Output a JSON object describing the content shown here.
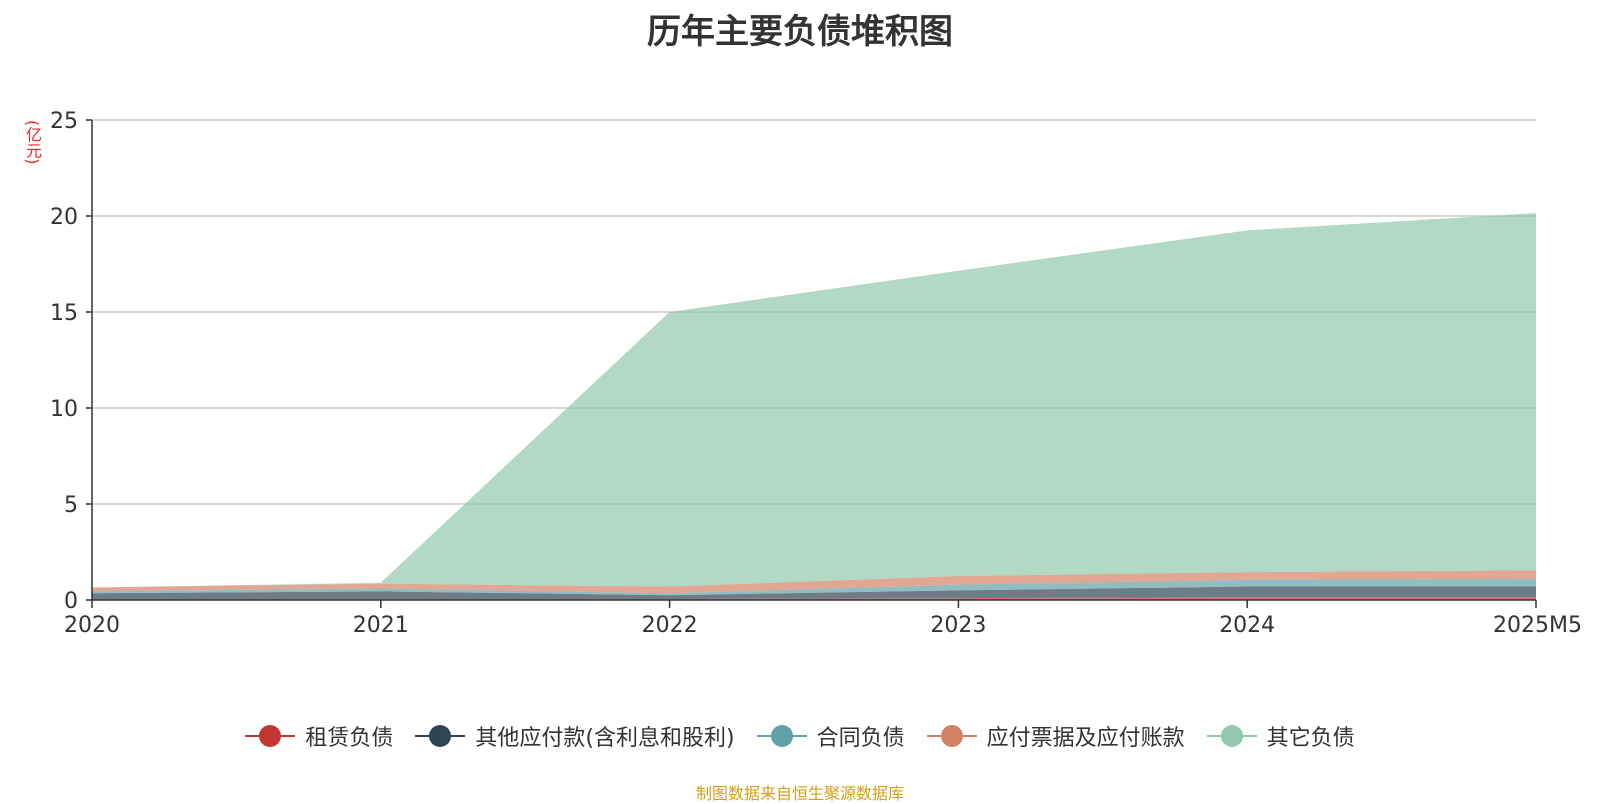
{
  "chart_data": {
    "type": "area",
    "stacked": true,
    "title": "历年主要负债堆积图",
    "unit_label": "(亿元)",
    "x": [
      "2020",
      "2021",
      "2022",
      "2023",
      "2024",
      "2025M5"
    ],
    "ylim": [
      0,
      25
    ],
    "yticks": [
      "0",
      "5",
      "10",
      "15",
      "20",
      "25"
    ],
    "grid": true,
    "legend_position": "bottom",
    "series": [
      {
        "name": "租赁负债",
        "color": "#c23531",
        "values": [
          0.05,
          0.05,
          0.05,
          0.1,
          0.15,
          0.15
        ]
      },
      {
        "name": "其他应付款(含利息和股利)",
        "color": "#2f4554",
        "values": [
          0.3,
          0.4,
          0.2,
          0.4,
          0.55,
          0.55
        ]
      },
      {
        "name": "合同负债",
        "color": "#61a0a8",
        "values": [
          0.1,
          0.15,
          0.1,
          0.3,
          0.35,
          0.4
        ]
      },
      {
        "name": "应付票据及应付账款",
        "color": "#d48265",
        "values": [
          0.2,
          0.25,
          0.35,
          0.45,
          0.4,
          0.45
        ]
      },
      {
        "name": "其它负债",
        "color": "#91c7ae",
        "values": [
          0.0,
          0.05,
          14.3,
          15.9,
          17.8,
          18.6
        ]
      }
    ]
  },
  "footer": {
    "source": "制图数据来自恒生聚源数据库"
  }
}
